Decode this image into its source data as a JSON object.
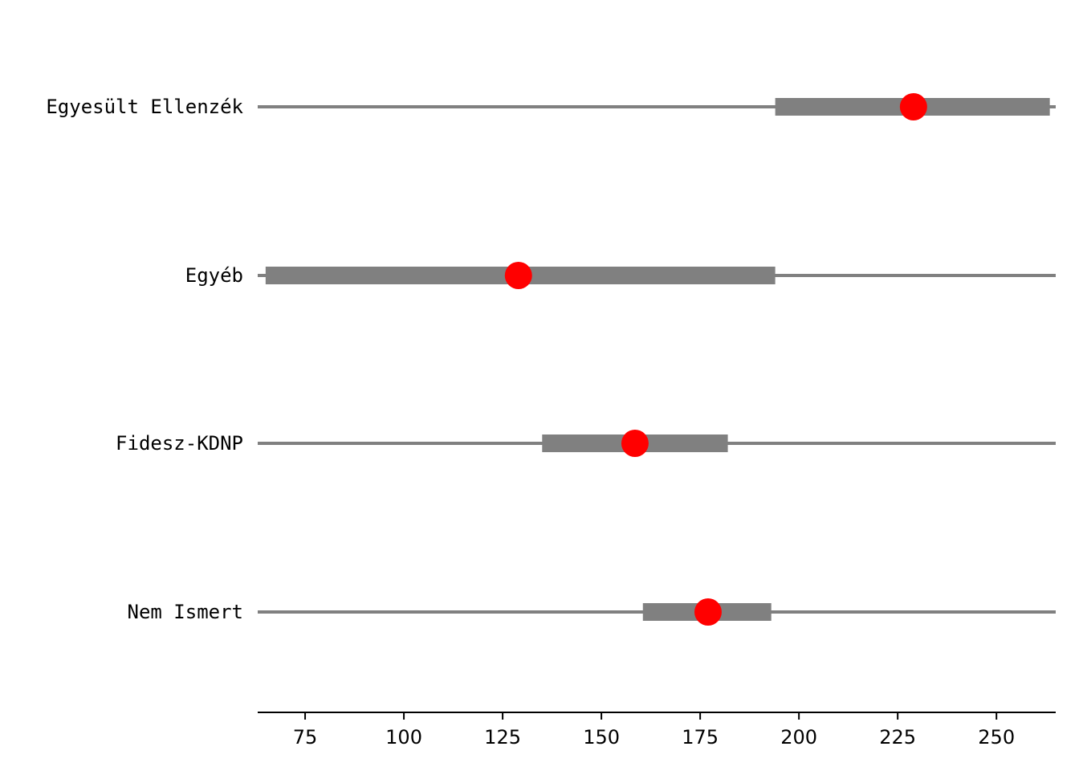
{
  "chart_data": {
    "type": "interval",
    "title": "",
    "xlabel": "",
    "ylabel": "",
    "xlim": [
      63,
      265
    ],
    "xticks": [
      75,
      100,
      125,
      150,
      175,
      200,
      225,
      250
    ],
    "xtick_labels": [
      "75",
      "100",
      "125",
      "150",
      "175",
      "200",
      "225",
      "250"
    ],
    "grid": false,
    "categories": [
      "Egyesült Ellenzék",
      "Egyéb",
      "Fidesz-KDNP",
      "Nem Ismert"
    ],
    "rows": [
      {
        "label": "Egyesült Ellenzék",
        "line": [
          63,
          265
        ],
        "box": [
          194,
          263.5
        ],
        "point": 229
      },
      {
        "label": "Egyéb",
        "line": [
          63,
          265
        ],
        "box": [
          65,
          194
        ],
        "point": 129
      },
      {
        "label": "Fidesz-KDNP",
        "line": [
          63,
          265
        ],
        "box": [
          135,
          182
        ],
        "point": 158.5
      },
      {
        "label": "Nem Ismert",
        "line": [
          63,
          265
        ],
        "box": [
          160.5,
          193
        ],
        "point": 177
      }
    ],
    "colors": {
      "line": "#808080",
      "box": "#808080",
      "point": "#ff0000",
      "axis": "#000000"
    }
  }
}
